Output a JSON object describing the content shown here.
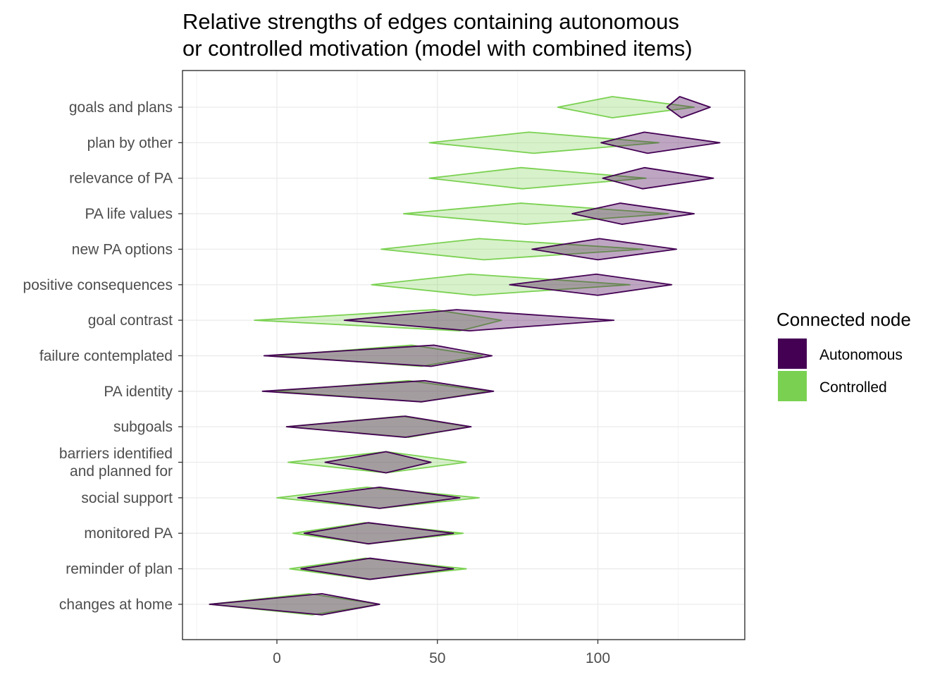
{
  "chart_data": {
    "type": "diamond-interval",
    "title_lines": [
      "Relative strengths of edges containing autonomous",
      "or controlled motivation (model with combined items)"
    ],
    "xlabel": "",
    "ylabel": "",
    "xlim": [
      -30,
      146
    ],
    "x_ticks": [
      0,
      50,
      100
    ],
    "grid": true,
    "legend": {
      "title": "Connected node",
      "position": "right",
      "entries": [
        {
          "name": "Autonomous",
          "color": "#440154"
        },
        {
          "name": "Controlled",
          "color": "#7AD151"
        }
      ]
    },
    "categories": [
      {
        "label_lines": [
          "goals and plans"
        ]
      },
      {
        "label_lines": [
          "plan by other"
        ]
      },
      {
        "label_lines": [
          "relevance of PA"
        ]
      },
      {
        "label_lines": [
          "PA life values"
        ]
      },
      {
        "label_lines": [
          "new PA options"
        ]
      },
      {
        "label_lines": [
          "positive consequences"
        ]
      },
      {
        "label_lines": [
          "goal contrast"
        ]
      },
      {
        "label_lines": [
          "failure contemplated"
        ]
      },
      {
        "label_lines": [
          "PA identity"
        ]
      },
      {
        "label_lines": [
          "subgoals"
        ]
      },
      {
        "label_lines": [
          "barriers identified",
          "and planned for"
        ]
      },
      {
        "label_lines": [
          "social support"
        ]
      },
      {
        "label_lines": [
          "monitored PA"
        ]
      },
      {
        "label_lines": [
          "reminder of plan"
        ]
      },
      {
        "label_lines": [
          "changes at home"
        ]
      }
    ],
    "series": [
      {
        "name": "Controlled",
        "color": "#7AD151",
        "values": [
          {
            "low": 87.5,
            "high": 130,
            "top": 104.5,
            "bottom": 104.5
          },
          {
            "low": 47.5,
            "high": 119,
            "top": 78.5,
            "bottom": 80
          },
          {
            "low": 47.5,
            "high": 115,
            "top": 76,
            "bottom": 76.5
          },
          {
            "low": 39.5,
            "high": 122,
            "top": 76,
            "bottom": 77.5
          },
          {
            "low": 32.5,
            "high": 114,
            "top": 63,
            "bottom": 64.5
          },
          {
            "low": 29.5,
            "high": 110,
            "top": 60,
            "bottom": 61.5
          },
          {
            "low": -7,
            "high": 70,
            "top": 49,
            "bottom": 57
          },
          {
            "low": -1,
            "high": 64,
            "top": 42,
            "bottom": 45
          },
          {
            "low": -1,
            "high": 66,
            "top": 41,
            "bottom": 45
          },
          {
            "low": 3,
            "high": 60,
            "top": 39,
            "bottom": 41
          },
          {
            "low": 3.5,
            "high": 59,
            "top": 34,
            "bottom": 34
          },
          {
            "low": 0,
            "high": 63,
            "top": 28,
            "bottom": 32
          },
          {
            "low": 5,
            "high": 58,
            "top": 27.5,
            "bottom": 28.5
          },
          {
            "low": 4,
            "high": 59,
            "top": 27.5,
            "bottom": 28.5
          },
          {
            "low": -21,
            "high": 32,
            "top": 10,
            "bottom": 11
          }
        ]
      },
      {
        "name": "Autonomous",
        "color": "#440154",
        "values": [
          {
            "low": 121.5,
            "high": 135,
            "top": 125.5,
            "bottom": 126
          },
          {
            "low": 101,
            "high": 138,
            "top": 114.5,
            "bottom": 115.5
          },
          {
            "low": 101.5,
            "high": 136,
            "top": 114.5,
            "bottom": 114
          },
          {
            "low": 92,
            "high": 130,
            "top": 107,
            "bottom": 107.5
          },
          {
            "low": 79.5,
            "high": 124.5,
            "top": 100.5,
            "bottom": 100
          },
          {
            "low": 72.5,
            "high": 123,
            "top": 99.5,
            "bottom": 100
          },
          {
            "low": 21,
            "high": 105,
            "top": 56,
            "bottom": 60
          },
          {
            "low": -4,
            "high": 67,
            "top": 49,
            "bottom": 48
          },
          {
            "low": -4.5,
            "high": 67.5,
            "top": 46,
            "bottom": 45
          },
          {
            "low": 3,
            "high": 60.5,
            "top": 40,
            "bottom": 40
          },
          {
            "low": 15,
            "high": 48,
            "top": 34,
            "bottom": 34
          },
          {
            "low": 6.5,
            "high": 57,
            "top": 32,
            "bottom": 32
          },
          {
            "low": 8.5,
            "high": 55,
            "top": 28.5,
            "bottom": 28.5
          },
          {
            "low": 7.5,
            "high": 55,
            "top": 29,
            "bottom": 29
          },
          {
            "low": -21,
            "high": 32,
            "top": 14,
            "bottom": 14
          }
        ]
      }
    ]
  }
}
